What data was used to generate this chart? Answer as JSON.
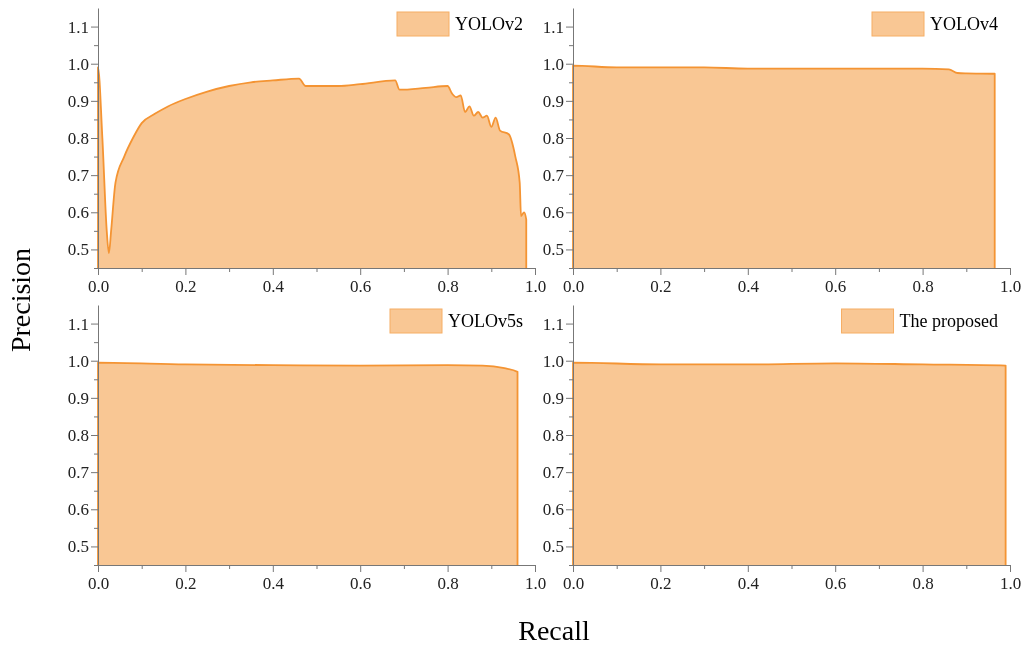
{
  "chart_data": [
    {
      "type": "area",
      "ylabel": "Precision",
      "legend": "top right",
      "xlim": [
        0,
        1
      ],
      "ylim": [
        0.45,
        1.15
      ],
      "xticks": [
        {
          "value": 0,
          "label": "0.0"
        },
        {
          "value": 0.1,
          "label": null
        },
        0.2,
        {
          "value": 0.3,
          "label": null
        },
        0.4,
        {
          "value": 0.5,
          "label": null
        },
        0.6,
        {
          "value": 0.7,
          "label": null
        },
        0.8,
        {
          "value": 0.9,
          "label": null
        },
        {
          "value": 1,
          "label": "1.0"
        }
      ],
      "yticks": [
        {
          "value": 0.45,
          "label": null
        },
        0.5,
        {
          "value": 0.55,
          "label": null
        },
        0.6,
        {
          "value": 0.65,
          "label": null
        },
        0.7,
        {
          "value": 0.75,
          "label": null
        },
        0.8,
        {
          "value": 0.85,
          "label": null
        },
        0.9,
        {
          "value": 0.95,
          "label": null
        },
        {
          "value": 1,
          "label": "1.0"
        },
        {
          "value": 1.05,
          "label": null
        },
        1.1
      ],
      "series": [
        {
          "name": "YOLOv2",
          "color": "#f9c794",
          "x": [
            0,
            0.01,
            0.02,
            0.025,
            0.03,
            0.04,
            0.06,
            0.08,
            0.1,
            0.13,
            0.16,
            0.2,
            0.25,
            0.3,
            0.35,
            0.4,
            0.46,
            0.475,
            0.55,
            0.6,
            0.68,
            0.69,
            0.75,
            0.8,
            0.81,
            0.82,
            0.83,
            0.84,
            0.85,
            0.86,
            0.87,
            0.88,
            0.89,
            0.9,
            0.91,
            0.92,
            0.94,
            0.955,
            0.965,
            0.968,
            0.975,
            0.98
          ],
          "values": [
            0.99,
            0.8,
            0.55,
            0.49,
            0.55,
            0.68,
            0.75,
            0.8,
            0.84,
            0.865,
            0.885,
            0.905,
            0.925,
            0.94,
            0.95,
            0.955,
            0.96,
            0.94,
            0.94,
            0.945,
            0.955,
            0.93,
            0.935,
            0.94,
            0.92,
            0.91,
            0.915,
            0.87,
            0.885,
            0.86,
            0.87,
            0.855,
            0.86,
            0.83,
            0.855,
            0.82,
            0.81,
            0.75,
            0.68,
            0.59,
            0.6,
            0.58
          ]
        }
      ]
    },
    {
      "type": "area",
      "legend": "top right",
      "xlim": [
        0,
        1
      ],
      "ylim": [
        0.45,
        1.15
      ],
      "xticks": [
        {
          "value": 0,
          "label": "0.0"
        },
        {
          "value": 0.1,
          "label": null
        },
        0.2,
        {
          "value": 0.3,
          "label": null
        },
        0.4,
        {
          "value": 0.5,
          "label": null
        },
        0.6,
        {
          "value": 0.7,
          "label": null
        },
        0.8,
        {
          "value": 0.9,
          "label": null
        },
        {
          "value": 1,
          "label": "1.0"
        }
      ],
      "yticks": [
        {
          "value": 0.45,
          "label": null
        },
        0.5,
        {
          "value": 0.55,
          "label": null
        },
        0.6,
        {
          "value": 0.65,
          "label": null
        },
        0.7,
        {
          "value": 0.75,
          "label": null
        },
        0.8,
        {
          "value": 0.85,
          "label": null
        },
        0.9,
        {
          "value": 0.95,
          "label": null
        },
        {
          "value": 1,
          "label": "1.0"
        },
        {
          "value": 1.05,
          "label": null
        },
        1.1
      ],
      "series": [
        {
          "name": "YOLOv4",
          "color": "#f9c794",
          "x": [
            0,
            0.1,
            0.2,
            0.3,
            0.4,
            0.6,
            0.8,
            0.86,
            0.88,
            0.9,
            0.965
          ],
          "values": [
            0.995,
            0.99,
            0.99,
            0.99,
            0.987,
            0.987,
            0.987,
            0.985,
            0.975,
            0.974,
            0.973
          ]
        }
      ]
    },
    {
      "type": "area",
      "xlabel": "Recall",
      "legend": "top right",
      "xlim": [
        0,
        1
      ],
      "ylim": [
        0.45,
        1.15
      ],
      "xticks": [
        {
          "value": 0,
          "label": "0.0"
        },
        {
          "value": 0.1,
          "label": null
        },
        0.2,
        {
          "value": 0.3,
          "label": null
        },
        0.4,
        {
          "value": 0.5,
          "label": null
        },
        0.6,
        {
          "value": 0.7,
          "label": null
        },
        0.8,
        {
          "value": 0.9,
          "label": null
        },
        {
          "value": 1,
          "label": "1.0"
        }
      ],
      "yticks": [
        {
          "value": 0.45,
          "label": null
        },
        0.5,
        {
          "value": 0.55,
          "label": null
        },
        0.6,
        {
          "value": 0.65,
          "label": null
        },
        0.7,
        {
          "value": 0.75,
          "label": null
        },
        0.8,
        {
          "value": 0.85,
          "label": null
        },
        0.9,
        {
          "value": 0.95,
          "label": null
        },
        {
          "value": 1,
          "label": "1.0"
        },
        {
          "value": 1.05,
          "label": null
        },
        1.1
      ],
      "series": [
        {
          "name": "YOLOv5s",
          "color": "#f9c794",
          "x": [
            0,
            0.2,
            0.4,
            0.6,
            0.8,
            0.88,
            0.93,
            0.96
          ],
          "values": [
            0.995,
            0.99,
            0.988,
            0.987,
            0.988,
            0.987,
            0.98,
            0.97
          ]
        }
      ]
    },
    {
      "type": "area",
      "legend": "top right",
      "xlim": [
        0,
        1
      ],
      "ylim": [
        0.45,
        1.15
      ],
      "xticks": [
        {
          "value": 0,
          "label": "0.0"
        },
        {
          "value": 0.1,
          "label": null
        },
        0.2,
        {
          "value": 0.3,
          "label": null
        },
        0.4,
        {
          "value": 0.5,
          "label": null
        },
        0.6,
        {
          "value": 0.7,
          "label": null
        },
        0.8,
        {
          "value": 0.9,
          "label": null
        },
        {
          "value": 1,
          "label": "1.0"
        }
      ],
      "yticks": [
        {
          "value": 0.45,
          "label": null
        },
        0.5,
        {
          "value": 0.55,
          "label": null
        },
        0.6,
        {
          "value": 0.65,
          "label": null
        },
        0.7,
        {
          "value": 0.75,
          "label": null
        },
        0.8,
        {
          "value": 0.85,
          "label": null
        },
        0.9,
        {
          "value": 0.95,
          "label": null
        },
        {
          "value": 1,
          "label": "1.0"
        },
        {
          "value": 1.05,
          "label": null
        },
        1.1
      ],
      "series": [
        {
          "name": "The proposed",
          "color": "#f9c794",
          "x": [
            0,
            0.2,
            0.4,
            0.6,
            0.8,
            0.99
          ],
          "values": [
            0.995,
            0.99,
            0.99,
            0.993,
            0.99,
            0.987
          ]
        }
      ]
    }
  ]
}
